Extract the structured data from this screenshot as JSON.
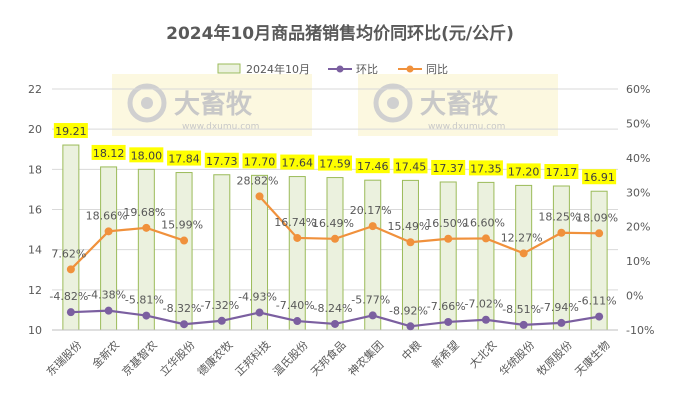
{
  "chart_data": {
    "type": "bar",
    "title": "2024年10月商品猪销售均价同环比(元/公斤)",
    "categories": [
      "东瑞股份",
      "金新农",
      "京基智农",
      "立华股份",
      "德康农牧",
      "正邦科技",
      "温氏股份",
      "天邦食品",
      "神农集团",
      "中粮",
      "新希望",
      "大北农",
      "华统股份",
      "牧原股份",
      "天康生物"
    ],
    "series": [
      {
        "name": "2024年10月",
        "type": "bar",
        "axis": "left",
        "color": "#ebf1de",
        "values": [
          19.21,
          18.12,
          18.0,
          17.84,
          17.73,
          17.7,
          17.64,
          17.59,
          17.46,
          17.45,
          17.37,
          17.35,
          17.2,
          17.17,
          16.91
        ],
        "labels": [
          "19.21",
          "18.12",
          "18.00",
          "17.84",
          "17.73",
          "17.70",
          "17.64",
          "17.59",
          "17.46",
          "17.45",
          "17.37",
          "17.35",
          "17.20",
          "17.17",
          "16.91"
        ]
      },
      {
        "name": "环比",
        "type": "line",
        "axis": "right",
        "color": "#7b5fa0",
        "values": [
          -4.82,
          -4.38,
          -5.81,
          -8.32,
          -7.32,
          -4.93,
          -7.4,
          -8.24,
          -5.77,
          -8.92,
          -7.66,
          -7.02,
          -8.51,
          -7.94,
          -6.11
        ],
        "labels": [
          "-4.82%",
          "-4.38%",
          "-5.81%",
          "-8.32%",
          "-7.32%",
          "-4.93%",
          "-7.40%",
          "-8.24%",
          "-5.77%",
          "-8.92%",
          "-7.66%",
          "-7.02%",
          "-8.51%",
          "-7.94%",
          "-6.11%"
        ]
      },
      {
        "name": "同比",
        "type": "line",
        "axis": "right",
        "color": "#f0913c",
        "values": [
          7.62,
          18.66,
          19.68,
          15.99,
          null,
          28.82,
          16.74,
          16.49,
          20.17,
          15.49,
          16.5,
          16.6,
          12.27,
          18.25,
          18.09
        ],
        "labels": [
          "7.62%",
          "18.66%",
          "19.68%",
          "15.99%",
          "",
          "28.82%",
          "16.74%",
          "16.49%",
          "20.17%",
          "15.49%",
          "16.50%",
          "16.60%",
          "12.27%",
          "18.25%",
          "18.09%"
        ]
      }
    ],
    "left_axis": {
      "ylim": [
        10,
        22
      ],
      "ticks": [
        "10",
        "12",
        "14",
        "16",
        "18",
        "20",
        "22"
      ]
    },
    "right_axis": {
      "ylim": [
        -10,
        60
      ],
      "ticks": [
        "-10%",
        "0%",
        "10%",
        "20%",
        "30%",
        "40%",
        "50%",
        "60%"
      ]
    },
    "grid": true,
    "legend": "top-center",
    "label_highlight": "#ffff00"
  },
  "watermark": {
    "name": "大畜牧",
    "url": "www.dxumu.com"
  }
}
